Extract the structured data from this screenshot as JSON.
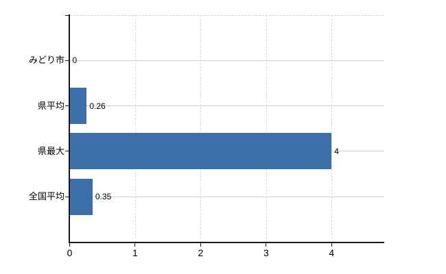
{
  "chart_data": {
    "type": "bar",
    "orientation": "horizontal",
    "title": "",
    "xlabel": "",
    "ylabel": "",
    "categories": [
      "みどり市",
      "県平均",
      "県最大",
      "全国平均"
    ],
    "values": [
      0,
      0.26,
      4,
      0.35
    ],
    "value_labels": [
      "0",
      "0.26",
      "4",
      "0.35"
    ],
    "x_ticks": [
      0,
      1,
      2,
      3,
      4
    ],
    "x_tick_labels": [
      "0",
      "1",
      "2",
      "3",
      "4"
    ],
    "xlim": [
      0,
      4.8
    ],
    "grid": "on",
    "legend_position": "none",
    "colors": {
      "bar": "#3d6fa8",
      "h_gridline": "#cfd7cf",
      "v_gridline": "#dadada",
      "plot_top_border": "#d0d0d0",
      "axis": "#161616",
      "text": "#000000",
      "background": "#ffffff"
    }
  }
}
